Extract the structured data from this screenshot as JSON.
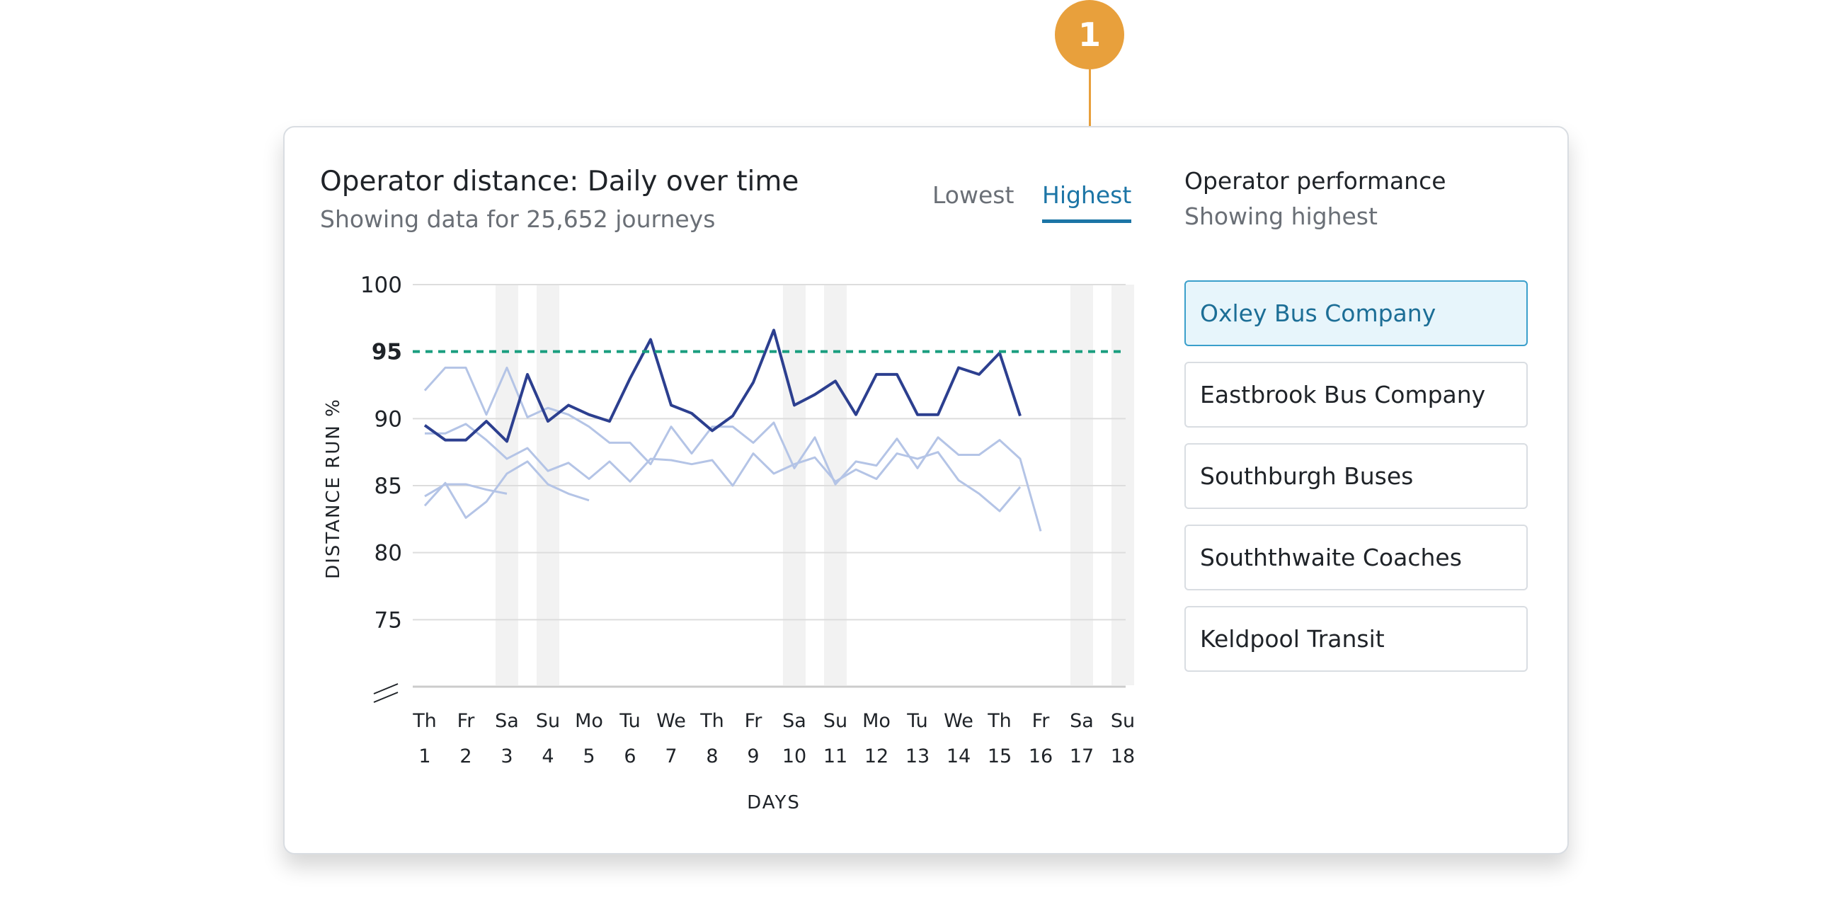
{
  "callout": {
    "number": "1",
    "color": "#e8a03c"
  },
  "card": {
    "title": "Operator distance: Daily over time",
    "subtitle": "Showing data for 25,652 journeys"
  },
  "tabs": [
    {
      "label": "Lowest",
      "active": false
    },
    {
      "label": "Highest",
      "active": true
    }
  ],
  "performance": {
    "title": "Operator performance",
    "subtitle": "Showing highest",
    "operators": [
      {
        "name": "Oxley Bus Company",
        "selected": true
      },
      {
        "name": "Eastbrook Bus Company",
        "selected": false
      },
      {
        "name": "Southburgh Buses",
        "selected": false
      },
      {
        "name": "Souththwaite Coaches",
        "selected": false
      },
      {
        "name": "Keldpool Transit",
        "selected": false
      }
    ]
  },
  "colors": {
    "accent": "#1c75a6",
    "highlight_line": "#2c3f8f",
    "faded_line": "#b4c4e6",
    "target_line": "#1a9e7f",
    "weekend_band": "#f2f2f2"
  },
  "chart_data": {
    "type": "line",
    "xlabel": "DAYS",
    "ylabel": "DISTANCE RUN %",
    "ylim": [
      70,
      100
    ],
    "y_ticks": [
      100,
      95,
      90,
      85,
      80,
      75
    ],
    "axis_break": true,
    "target_line": 95,
    "x_days": [
      "Th",
      "Fr",
      "Sa",
      "Su",
      "Mo",
      "Tu",
      "We",
      "Th",
      "Fr",
      "Sa",
      "Su",
      "Mo",
      "Tu",
      "We",
      "Th",
      "Fr",
      "Sa",
      "Su"
    ],
    "x_dates": [
      "1",
      "2",
      "3",
      "4",
      "5",
      "6",
      "7",
      "8",
      "9",
      "10",
      "11",
      "12",
      "13",
      "14",
      "15",
      "16",
      "17",
      "18"
    ],
    "weekend_bands": [
      3,
      4,
      10,
      11,
      17,
      18
    ],
    "x": [
      1,
      1.5,
      2,
      2.5,
      3,
      3.5,
      4,
      4.5,
      5,
      5.5,
      6,
      6.5,
      7,
      7.5,
      8,
      8.5,
      9,
      9.5,
      10,
      10.5,
      11,
      11.5,
      12,
      12.5,
      13,
      13.5,
      14,
      14.5,
      15,
      15.5,
      16,
      16.5,
      17,
      17.5,
      18,
      18.3
    ],
    "series": [
      {
        "name": "Oxley Bus Company",
        "highlight": true,
        "values": [
          89.5,
          88.4,
          88.4,
          89.8,
          88.3,
          93.3,
          89.8,
          91.0,
          90.3,
          89.8,
          93.0,
          95.9,
          91.0,
          90.4,
          89.1,
          90.2,
          92.7,
          96.6,
          91.0,
          91.8,
          92.8,
          90.3,
          93.3,
          93.3,
          90.3,
          90.3,
          93.8,
          93.3,
          94.9,
          90.2,
          null,
          null,
          null,
          null,
          null,
          null
        ]
      },
      {
        "name": "Eastbrook Bus Company",
        "highlight": false,
        "values": [
          92.1,
          93.8,
          93.8,
          90.3,
          93.8,
          90.1,
          90.8,
          90.3,
          89.4,
          88.2,
          88.2,
          86.6,
          89.4,
          87.4,
          89.4,
          89.4,
          88.2,
          89.7,
          86.3,
          88.6,
          85.1,
          86.8,
          86.5,
          88.5,
          86.3,
          88.6,
          87.3,
          87.3,
          88.4,
          87.0,
          81.6,
          null,
          null,
          null,
          null,
          null
        ]
      },
      {
        "name": "Southburgh Buses",
        "highlight": false,
        "values": [
          88.9,
          88.9,
          89.6,
          88.4,
          87.0,
          87.8,
          86.1,
          86.7,
          85.5,
          86.8,
          85.3,
          87.0,
          86.9,
          86.6,
          86.9,
          85.0,
          87.4,
          85.9,
          86.6,
          87.1,
          85.3,
          86.2,
          85.5,
          87.4,
          87.0,
          87.5,
          85.4,
          84.4,
          83.1,
          84.9,
          null,
          null,
          null,
          null,
          null,
          null
        ]
      },
      {
        "name": "Souththwaite Coaches",
        "highlight": false,
        "values": [
          84.2,
          85.1,
          85.1,
          84.7,
          84.4,
          null,
          null,
          null,
          null,
          null,
          null,
          null,
          null,
          null,
          null,
          null,
          null,
          null,
          null,
          null,
          null,
          null,
          null,
          null,
          null,
          null,
          null,
          null,
          null,
          null,
          null,
          null,
          null,
          null,
          null,
          null
        ]
      },
      {
        "name": "Keldpool Transit",
        "highlight": false,
        "values": [
          83.5,
          85.2,
          82.6,
          83.8,
          85.9,
          86.8,
          85.1,
          84.4,
          83.9,
          null,
          null,
          null,
          null,
          null,
          null,
          null,
          null,
          null,
          null,
          null,
          null,
          null,
          null,
          null,
          null,
          null,
          null,
          null,
          null,
          null,
          null,
          null,
          null,
          null,
          null,
          null
        ]
      }
    ]
  }
}
